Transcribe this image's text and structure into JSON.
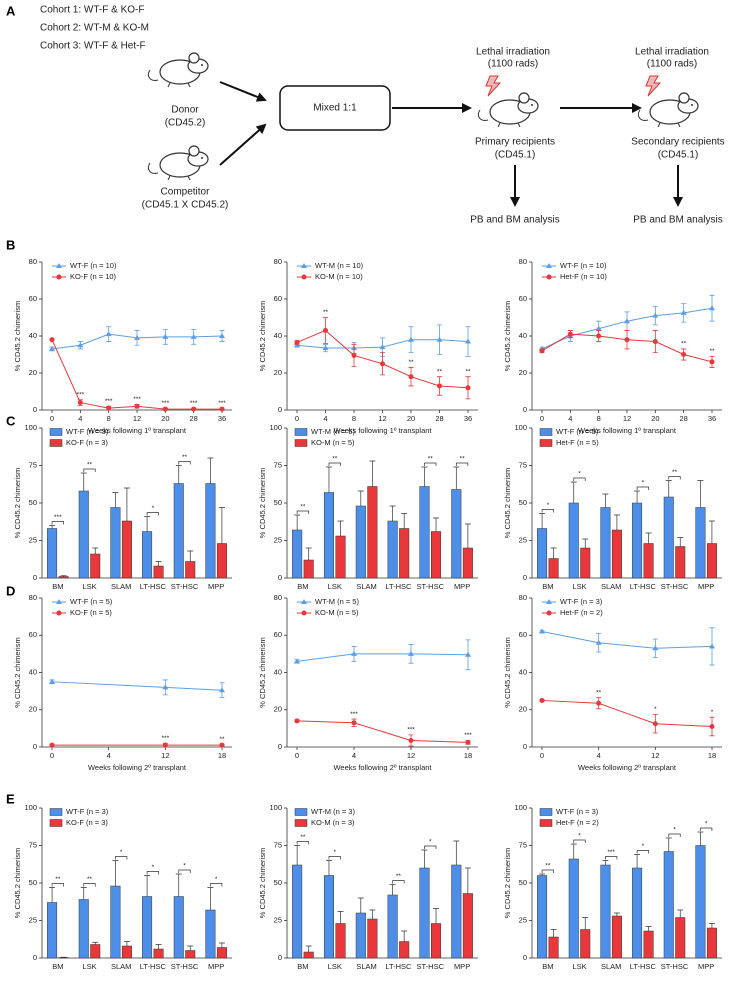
{
  "panel_labels": [
    "A",
    "B",
    "C",
    "D",
    "E"
  ],
  "diagram": {
    "cohorts": [
      "Cohort 1: WT-F & KO-F",
      "Cohort 2: WT-M & KO-M",
      "Cohort 3: WT-F & Het-F"
    ],
    "donor": {
      "label": "Donor",
      "sub": "(CD45.2)"
    },
    "competitor": {
      "label": "Competitor",
      "sub": "(CD45.1 X CD45.2)"
    },
    "mix": "Mixed 1:1",
    "primary": {
      "irradiation": "Lethal irradiation",
      "dose": "(1100 rads)",
      "label": "Primary recipients",
      "sub": "(CD45.1)",
      "analysis": "PB and BM analysis"
    },
    "secondary": {
      "irradiation": "Lethal irradiation",
      "dose": "(1100 rads)",
      "label": "Secondary recipients",
      "sub": "(CD45.1)",
      "analysis": "PB and BM analysis"
    }
  },
  "chart_data": [
    {
      "type": "line",
      "ylabel": "% CD45.2 chimerism",
      "xlabel": "Weeks following 1º transplant",
      "categories": [
        "0",
        "4",
        "8",
        "12",
        "20",
        "28",
        "36"
      ],
      "ylim": [
        0,
        80
      ],
      "yticks": [
        0,
        20,
        40,
        60,
        80
      ],
      "legend": "upper left",
      "series": [
        {
          "name": "WT-F (n = 10)",
          "color": "#5b9ee6",
          "marker": "triangle",
          "values": [
            33,
            35,
            41,
            39,
            39.5,
            39.5,
            40
          ],
          "errors": [
            1,
            2,
            4,
            4,
            4,
            4,
            3
          ]
        },
        {
          "name": "KO-F (n = 10)",
          "color": "#e8383b",
          "marker": "circle",
          "values": [
            38,
            4,
            1,
            2,
            0.5,
            0.5,
            0.5
          ],
          "errors": [
            0.5,
            1.5,
            1,
            1,
            0.5,
            0.5,
            0.5
          ],
          "annotations": [
            null,
            "***",
            "***",
            "***",
            "***",
            "***",
            "***"
          ]
        }
      ]
    },
    {
      "type": "line",
      "ylabel": "% CD45.2 chimerism",
      "xlabel": "Weeks following 1º transplant",
      "categories": [
        "0",
        "4",
        "8",
        "12",
        "20",
        "28",
        "36"
      ],
      "ylim": [
        0,
        80
      ],
      "yticks": [
        0,
        20,
        40,
        60,
        80
      ],
      "legend": "upper left",
      "series": [
        {
          "name": "WT-M (n = 10)",
          "color": "#5b9ee6",
          "marker": "triangle",
          "values": [
            35,
            33.5,
            33.5,
            34,
            38,
            38,
            37
          ],
          "errors": [
            1,
            2,
            3,
            5,
            7,
            8,
            8
          ]
        },
        {
          "name": "KO-M (n = 10)",
          "color": "#e8383b",
          "marker": "circle",
          "values": [
            36.5,
            43,
            29.5,
            25,
            18,
            13,
            12
          ],
          "errors": [
            1,
            7,
            6,
            6,
            5,
            5,
            6
          ],
          "annotations": [
            null,
            "**",
            null,
            null,
            "**",
            "**",
            "**"
          ]
        }
      ]
    },
    {
      "type": "line",
      "ylabel": "% CD45.2 chimerism",
      "xlabel": "Weeks following 1º transplant",
      "categories": [
        "0",
        "4",
        "8",
        "12",
        "20",
        "28",
        "36"
      ],
      "ylim": [
        0,
        80
      ],
      "yticks": [
        0,
        20,
        40,
        60,
        80
      ],
      "legend": "upper left",
      "series": [
        {
          "name": "WT-F (n = 10)",
          "color": "#5b9ee6",
          "marker": "triangle",
          "values": [
            33,
            40,
            44,
            48,
            51,
            52.5,
            55
          ],
          "errors": [
            1,
            3,
            4,
            5,
            5,
            5,
            7
          ]
        },
        {
          "name": "Het-F (n = 10)",
          "color": "#e8383b",
          "marker": "circle",
          "values": [
            32,
            41,
            40,
            38,
            37,
            30,
            26
          ],
          "errors": [
            1,
            2,
            3,
            5,
            6,
            3,
            3
          ],
          "annotations": [
            null,
            null,
            null,
            null,
            null,
            "**",
            "**"
          ]
        }
      ]
    },
    {
      "type": "bar",
      "ylabel": "% CD45.2 chimerism",
      "categories": [
        "BM",
        "LSK",
        "SLAM",
        "LT-HSC",
        "ST-HSC",
        "MPP"
      ],
      "ylim": [
        0,
        100
      ],
      "yticks": [
        0,
        25,
        50,
        75,
        100
      ],
      "legend": "upper left",
      "annotations": [
        "***",
        "**",
        null,
        "*",
        "**",
        null
      ],
      "series": [
        {
          "name": "WT-F (n = 3)",
          "color": "#4d8fe8",
          "values": [
            33,
            58,
            47,
            31,
            63,
            63
          ],
          "errors": [
            2,
            12,
            10,
            10,
            12,
            17
          ]
        },
        {
          "name": "KO-F (n = 3)",
          "color": "#e8383b",
          "values": [
            1,
            16,
            38,
            8,
            11,
            23
          ],
          "errors": [
            0.5,
            4,
            22,
            3,
            7,
            24
          ]
        }
      ]
    },
    {
      "type": "bar",
      "ylabel": "% CD45.2 chimerism",
      "categories": [
        "BM",
        "LSK",
        "SLAM",
        "LT-HSC",
        "ST-HSC",
        "MPP"
      ],
      "ylim": [
        0,
        100
      ],
      "yticks": [
        0,
        25,
        50,
        75,
        100
      ],
      "legend": "upper left",
      "annotations": [
        "**",
        "**",
        null,
        null,
        "**",
        "**"
      ],
      "series": [
        {
          "name": "WT-M (n = 5)",
          "color": "#4d8fe8",
          "values": [
            32,
            57,
            48,
            38,
            61,
            59
          ],
          "errors": [
            10,
            17,
            10,
            10,
            13,
            15
          ]
        },
        {
          "name": "KO-M (n = 5)",
          "color": "#e8383b",
          "values": [
            12,
            28,
            61,
            33,
            31,
            20
          ],
          "errors": [
            8,
            10,
            17,
            10,
            9,
            16
          ]
        }
      ]
    },
    {
      "type": "bar",
      "ylabel": "% CD45.2 chimerism",
      "categories": [
        "BM",
        "LSK",
        "SLAM",
        "LT-HSC",
        "ST-HSC",
        "MPP"
      ],
      "ylim": [
        0,
        100
      ],
      "yticks": [
        0,
        25,
        50,
        75,
        100
      ],
      "legend": "upper left",
      "annotations": [
        "*",
        "*",
        null,
        "*",
        "**",
        null
      ],
      "series": [
        {
          "name": "WT-F (n = 5)",
          "color": "#4d8fe8",
          "values": [
            33,
            50,
            47,
            50,
            54,
            47
          ],
          "errors": [
            10,
            14,
            9,
            8,
            11,
            18
          ]
        },
        {
          "name": "Het-F (n = 5)",
          "color": "#e8383b",
          "values": [
            13,
            20,
            32,
            23,
            21,
            23
          ],
          "errors": [
            7,
            6,
            10,
            7,
            6,
            15
          ]
        }
      ]
    },
    {
      "type": "line",
      "ylabel": "% CD45.2 chimerism",
      "xlabel": "Weeks following 2º transplant",
      "categories": [
        "0",
        "4",
        "12",
        "18"
      ],
      "ylim": [
        0,
        80
      ],
      "yticks": [
        0,
        20,
        40,
        60,
        80
      ],
      "legend": "upper left",
      "series": [
        {
          "name": "WT-F (n = 5)",
          "color": "#5b9ee6",
          "marker": "triangle",
          "x": [
            "0",
            "12",
            "18"
          ],
          "values": [
            35,
            32,
            30.5
          ],
          "errors": [
            1,
            4,
            4
          ]
        },
        {
          "name": "KO-F (n = 5)",
          "color": "#e8383b",
          "marker": "circle",
          "x": [
            "0",
            "12",
            "18"
          ],
          "values": [
            1,
            1,
            1
          ],
          "errors": [
            0.5,
            1,
            0.5
          ],
          "annotations": [
            null,
            "***",
            "**"
          ]
        }
      ]
    },
    {
      "type": "line",
      "ylabel": "% CD45.2 chimerism",
      "xlabel": "Weeks following 2º transplant",
      "categories": [
        "0",
        "4",
        "12",
        "18"
      ],
      "ylim": [
        0,
        80
      ],
      "yticks": [
        0,
        20,
        40,
        60,
        80
      ],
      "legend": "upper left",
      "series": [
        {
          "name": "WT-M (n = 5)",
          "color": "#5b9ee6",
          "marker": "triangle",
          "values": [
            46,
            50,
            50,
            49.5
          ],
          "errors": [
            1,
            4,
            5,
            8
          ]
        },
        {
          "name": "KO-M (n = 5)",
          "color": "#e8383b",
          "marker": "circle",
          "values": [
            14,
            13,
            3.5,
            2.5
          ],
          "errors": [
            0.5,
            2,
            3,
            1
          ],
          "annotations": [
            null,
            "***",
            "***",
            "***"
          ]
        }
      ]
    },
    {
      "type": "line",
      "ylabel": "% CD45.2 chimerism",
      "xlabel": "Weeks following 2º transplant",
      "categories": [
        "0",
        "4",
        "12",
        "18"
      ],
      "ylim": [
        0,
        80
      ],
      "yticks": [
        0,
        20,
        40,
        60,
        80
      ],
      "legend": "upper left",
      "series": [
        {
          "name": "WT-F (n = 3)",
          "color": "#5b9ee6",
          "marker": "triangle",
          "values": [
            62,
            56,
            53,
            54
          ],
          "errors": [
            0.5,
            5,
            5,
            10
          ]
        },
        {
          "name": "Het-F (n = 2)",
          "color": "#e8383b",
          "marker": "circle",
          "values": [
            25,
            23.5,
            12.5,
            11
          ],
          "errors": [
            0.5,
            3,
            5,
            5
          ],
          "annotations": [
            null,
            "**",
            "*",
            "*"
          ]
        }
      ]
    },
    {
      "type": "bar",
      "ylabel": "% CD45.2 chimerism",
      "categories": [
        "BM",
        "LSK",
        "SLAM",
        "LT-HSC",
        "ST-HSC",
        "MPP"
      ],
      "ylim": [
        0,
        100
      ],
      "yticks": [
        0,
        25,
        50,
        75,
        100
      ],
      "legend": "upper left",
      "annotations": [
        "**",
        "**",
        "*",
        "*",
        "*",
        "*"
      ],
      "series": [
        {
          "name": "WT-F (n = 3)",
          "color": "#4d8fe8",
          "values": [
            37,
            39,
            48,
            41,
            41,
            32
          ],
          "errors": [
            10,
            8,
            17,
            14,
            15,
            15
          ]
        },
        {
          "name": "KO-F (n = 3)",
          "color": "#e8383b",
          "values": [
            0.3,
            9,
            8,
            6,
            5,
            7
          ],
          "errors": [
            0.2,
            1.5,
            3,
            3,
            3,
            3
          ]
        }
      ]
    },
    {
      "type": "bar",
      "ylabel": "% CD45.2 chimerism",
      "categories": [
        "BM",
        "LSK",
        "SLAM",
        "LT-HSC",
        "ST-HSC",
        "MPP"
      ],
      "ylim": [
        0,
        100
      ],
      "yticks": [
        0,
        25,
        50,
        75,
        100
      ],
      "legend": "upper left",
      "annotations": [
        "**",
        "*",
        null,
        "**",
        "*",
        null
      ],
      "series": [
        {
          "name": "WT-M (n = 3)",
          "color": "#4d8fe8",
          "values": [
            62,
            55,
            30,
            42,
            60,
            62
          ],
          "errors": [
            13,
            10,
            10,
            7,
            12,
            16
          ]
        },
        {
          "name": "KO-M (n = 3)",
          "color": "#e8383b",
          "values": [
            4,
            23,
            26,
            11,
            23,
            43
          ],
          "errors": [
            4,
            8,
            6,
            7,
            10,
            17
          ]
        }
      ]
    },
    {
      "type": "bar",
      "ylabel": "% CD45.2 chimerism",
      "categories": [
        "BM",
        "LSK",
        "SLAM",
        "LT-HSC",
        "ST-HSC",
        "MPP"
      ],
      "ylim": [
        0,
        100
      ],
      "yticks": [
        0,
        25,
        50,
        75,
        100
      ],
      "legend": "upper left",
      "annotations": [
        "**",
        "*",
        "***",
        "*",
        "*",
        "*"
      ],
      "series": [
        {
          "name": "WT-F (n = 3)",
          "color": "#4d8fe8",
          "values": [
            55,
            66,
            62,
            60,
            71,
            75
          ],
          "errors": [
            1,
            10,
            3,
            9,
            9,
            9
          ]
        },
        {
          "name": "Het-F (n = 2)",
          "color": "#e8383b",
          "values": [
            14,
            19,
            28,
            18,
            27,
            20
          ],
          "errors": [
            5,
            8,
            2,
            3,
            5,
            3
          ]
        }
      ]
    }
  ]
}
